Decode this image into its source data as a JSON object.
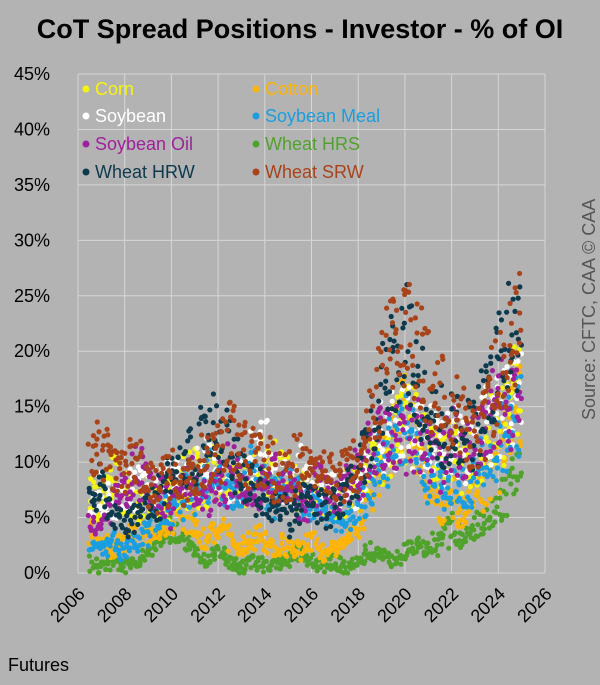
{
  "title": "CoT Spread Positions - Investor - % of OI",
  "footer": "Futures",
  "source": "Source: CFTC, CAA   © CAA",
  "chart_data": {
    "type": "scatter",
    "title": "CoT Spread Positions - Investor - % of OI",
    "xlim": [
      2006,
      2026
    ],
    "ylim": [
      0,
      45
    ],
    "x_ticks": [
      "2006",
      "2008",
      "2010",
      "2012",
      "2014",
      "2016",
      "2018",
      "2020",
      "2022",
      "2024",
      "2026"
    ],
    "y_ticks": [
      "0%",
      "5%",
      "10%",
      "15%",
      "20%",
      "25%",
      "30%",
      "35%",
      "40%",
      "45%"
    ],
    "grid": true,
    "legend_position": "top-left",
    "series": [
      {
        "name": "Corn",
        "color": "#f5f50a",
        "x": [
          2006.5,
          2007,
          2007.5,
          2008,
          2008.5,
          2009,
          2009.5,
          2010,
          2010.5,
          2011,
          2011.5,
          2012,
          2012.5,
          2013,
          2013.5,
          2014,
          2014.5,
          2015,
          2015.5,
          2016,
          2016.5,
          2017,
          2017.5,
          2018,
          2018.5,
          2019,
          2019.5,
          2020,
          2020.5,
          2021,
          2021.5,
          2022,
          2022.5,
          2023,
          2023.5,
          2024,
          2024.5,
          2025
        ],
        "y": [
          8,
          6,
          9,
          7,
          6,
          7,
          6,
          7,
          8,
          9,
          8,
          9,
          8,
          8,
          10,
          9,
          10,
          9,
          8,
          7,
          7,
          6,
          7,
          8,
          9,
          10,
          12,
          14,
          13,
          11,
          10,
          11,
          10,
          11,
          12,
          13,
          15,
          17
        ]
      },
      {
        "name": "Cotton",
        "color": "#ffb400",
        "x": [
          2006.5,
          2007,
          2007.5,
          2008,
          2008.5,
          2009,
          2009.5,
          2010,
          2010.5,
          2011,
          2011.5,
          2012,
          2012.5,
          2013,
          2013.5,
          2014,
          2014.5,
          2015,
          2015.5,
          2016,
          2016.5,
          2017,
          2017.5,
          2018,
          2018.5,
          2019,
          2019.5,
          2020,
          2020.5,
          2021,
          2021.5,
          2022,
          2022.5,
          2023,
          2023.5,
          2024,
          2024.5,
          2025
        ],
        "y": [
          4,
          3,
          2,
          3,
          4,
          3,
          4,
          5,
          6,
          4,
          3,
          4,
          3,
          2,
          3,
          3,
          2,
          3,
          2,
          3,
          2,
          2,
          3,
          4,
          7,
          9,
          12,
          15,
          12,
          8,
          6,
          7,
          6,
          7,
          8,
          10,
          14,
          16
        ]
      },
      {
        "name": "Soybean",
        "color": "#ffffff",
        "x": [
          2006.5,
          2007,
          2007.5,
          2008,
          2008.5,
          2009,
          2009.5,
          2010,
          2010.5,
          2011,
          2011.5,
          2012,
          2012.5,
          2013,
          2013.5,
          2014,
          2014.5,
          2015,
          2015.5,
          2016,
          2016.5,
          2017,
          2017.5,
          2018,
          2018.5,
          2019,
          2019.5,
          2020,
          2020.5,
          2021,
          2021.5,
          2022,
          2022.5,
          2023,
          2023.5,
          2024,
          2024.5,
          2025
        ],
        "y": [
          6,
          7,
          6,
          7,
          8,
          7,
          8,
          9,
          8,
          9,
          10,
          9,
          8,
          9,
          10,
          11,
          9,
          8,
          9,
          8,
          7,
          8,
          7,
          8,
          10,
          12,
          13,
          14,
          13,
          12,
          11,
          12,
          11,
          12,
          13,
          14,
          15,
          16
        ]
      },
      {
        "name": "Soybean Meal",
        "color": "#1a9ee0",
        "x": [
          2006.5,
          2007,
          2007.5,
          2008,
          2008.5,
          2009,
          2009.5,
          2010,
          2010.5,
          2011,
          2011.5,
          2012,
          2012.5,
          2013,
          2013.5,
          2014,
          2014.5,
          2015,
          2015.5,
          2016,
          2016.5,
          2017,
          2017.5,
          2018,
          2018.5,
          2019,
          2019.5,
          2020,
          2020.5,
          2021,
          2021.5,
          2022,
          2022.5,
          2023,
          2023.5,
          2024,
          2024.5,
          2025
        ],
        "y": [
          3,
          2,
          3,
          2,
          3,
          4,
          5,
          6,
          7,
          8,
          9,
          8,
          7,
          8,
          9,
          8,
          7,
          8,
          7,
          6,
          5,
          6,
          5,
          6,
          8,
          10,
          12,
          13,
          12,
          9,
          8,
          7,
          8,
          9,
          11,
          12,
          13,
          14
        ]
      },
      {
        "name": "Soybean Oil",
        "color": "#a0219d",
        "x": [
          2006.5,
          2007,
          2007.5,
          2008,
          2008.5,
          2009,
          2009.5,
          2010,
          2010.5,
          2011,
          2011.5,
          2012,
          2012.5,
          2013,
          2013.5,
          2014,
          2014.5,
          2015,
          2015.5,
          2016,
          2016.5,
          2017,
          2017.5,
          2018,
          2018.5,
          2019,
          2019.5,
          2020,
          2020.5,
          2021,
          2021.5,
          2022,
          2022.5,
          2023,
          2023.5,
          2024,
          2024.5,
          2025
        ],
        "y": [
          5,
          4,
          6,
          7,
          9,
          8,
          7,
          6,
          7,
          8,
          7,
          8,
          9,
          8,
          7,
          8,
          9,
          7,
          6,
          7,
          8,
          7,
          8,
          9,
          11,
          12,
          11,
          12,
          13,
          11,
          10,
          12,
          11,
          12,
          14,
          16,
          15,
          16
        ]
      },
      {
        "name": "Wheat HRS",
        "color": "#4fa32a",
        "x": [
          2006.5,
          2007,
          2007.5,
          2008,
          2008.5,
          2009,
          2009.5,
          2010,
          2010.5,
          2011,
          2011.5,
          2012,
          2012.5,
          2013,
          2013.5,
          2014,
          2014.5,
          2015,
          2015.5,
          2016,
          2016.5,
          2017,
          2017.5,
          2018,
          2018.5,
          2019,
          2019.5,
          2020,
          2020.5,
          2021,
          2021.5,
          2022,
          2022.5,
          2023,
          2023.5,
          2024,
          2024.5,
          2025
        ],
        "y": [
          1,
          0.5,
          1,
          0.5,
          1,
          2,
          3,
          4,
          3,
          2,
          1,
          2,
          1,
          0.5,
          1,
          0.5,
          1,
          1,
          2,
          1,
          0.5,
          1,
          0.5,
          1,
          2,
          2,
          1,
          2,
          3,
          2,
          3,
          4,
          3,
          4,
          5,
          6,
          8,
          9
        ]
      },
      {
        "name": "Wheat HRW",
        "color": "#0e3a4d",
        "x": [
          2006.5,
          2007,
          2007.5,
          2008,
          2008.5,
          2009,
          2009.5,
          2010,
          2010.5,
          2011,
          2011.5,
          2012,
          2012.5,
          2013,
          2013.5,
          2014,
          2014.5,
          2015,
          2015.5,
          2016,
          2016.5,
          2017,
          2017.5,
          2018,
          2018.5,
          2019,
          2019.5,
          2020,
          2020.5,
          2021,
          2021.5,
          2022,
          2022.5,
          2023,
          2023.5,
          2024,
          2024.5,
          2025
        ],
        "y": [
          7,
          8,
          5,
          4,
          5,
          6,
          7,
          9,
          10,
          11,
          12,
          13,
          11,
          9,
          8,
          7,
          6,
          5,
          6,
          7,
          6,
          6,
          7,
          9,
          12,
          16,
          20,
          22,
          17,
          15,
          13,
          14,
          12,
          13,
          16,
          20,
          22,
          21
        ]
      },
      {
        "name": "Wheat SRW",
        "color": "#a8431a",
        "x": [
          2006.5,
          2007,
          2007.5,
          2008,
          2008.5,
          2009,
          2009.5,
          2010,
          2010.5,
          2011,
          2011.5,
          2012,
          2012.5,
          2013,
          2013.5,
          2014,
          2014.5,
          2015,
          2015.5,
          2016,
          2016.5,
          2017,
          2017.5,
          2018,
          2018.5,
          2019,
          2019.5,
          2020,
          2020.5,
          2021,
          2021.5,
          2022,
          2022.5,
          2023,
          2023.5,
          2024,
          2024.5,
          2025
        ],
        "y": [
          10,
          11,
          9,
          9,
          10,
          8,
          8,
          9,
          8,
          9,
          10,
          11,
          12,
          11,
          10,
          10,
          9,
          9,
          10,
          10,
          9,
          8,
          9,
          10,
          13,
          17,
          21,
          23,
          20,
          17,
          16,
          15,
          13,
          12,
          14,
          18,
          22,
          23
        ]
      }
    ]
  }
}
